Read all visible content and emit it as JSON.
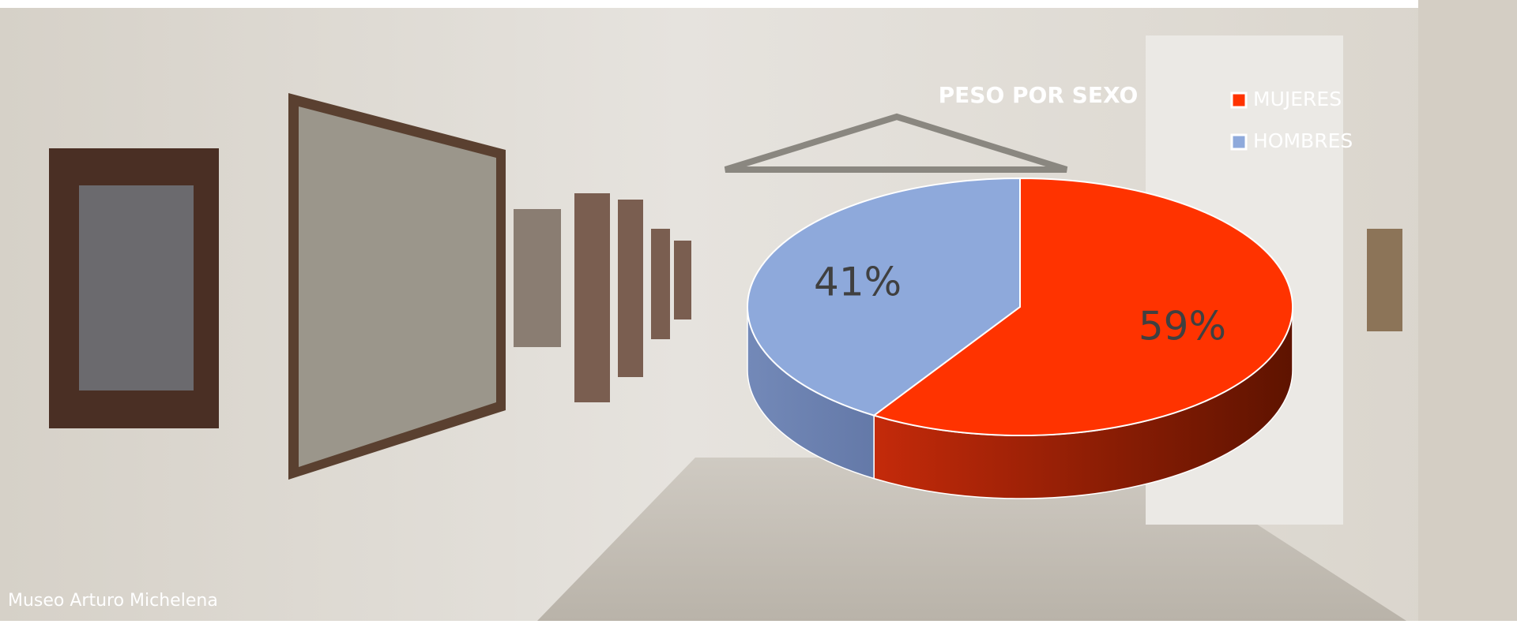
{
  "chart_data": {
    "type": "pie",
    "title": "PESO POR SEXO",
    "categories": [
      "MUJERES",
      "HOMBRES"
    ],
    "values": [
      59,
      41
    ],
    "value_labels": [
      "59%",
      "41%"
    ],
    "colors": [
      "#ff3300",
      "#8ea9db"
    ],
    "legend": "top-right"
  },
  "caption": "Museo Arturo Michelena"
}
